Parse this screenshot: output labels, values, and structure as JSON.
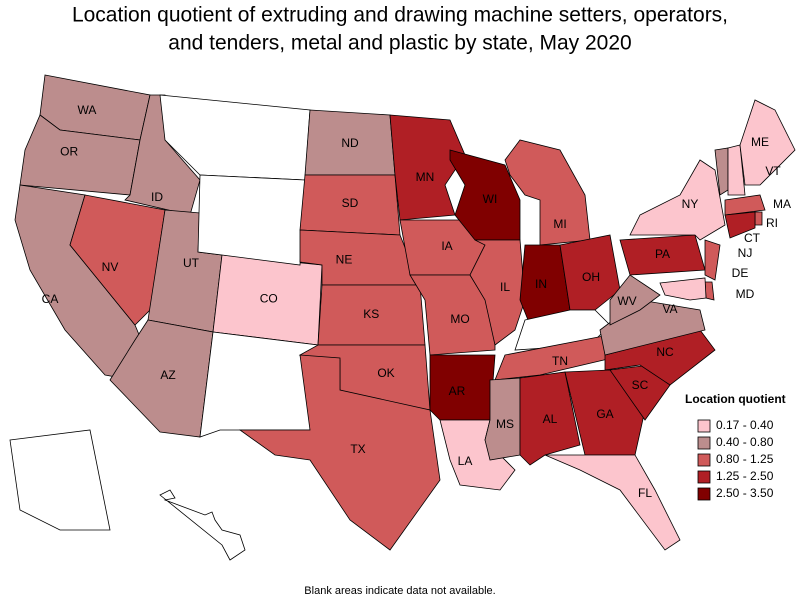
{
  "title": [
    "Location quotient of extruding and drawing machine setters, operators,",
    "and tenders, metal and plastic by state, May 2020"
  ],
  "legend": {
    "title": "Location quotient",
    "items": [
      {
        "label": "0.17 - 0.40",
        "color": "#fcc5cd"
      },
      {
        "label": "0.40 - 0.80",
        "color": "#bc8d8d"
      },
      {
        "label": "0.80 - 1.25",
        "color": "#d05a5a"
      },
      {
        "label": "1.25 - 2.50",
        "color": "#b01f25"
      },
      {
        "label": "2.50 - 3.50",
        "color": "#800000"
      }
    ]
  },
  "no_data_color": "#ffffff",
  "states": [
    {
      "label": "WA",
      "bin": 1
    },
    {
      "label": "OR",
      "bin": 1
    },
    {
      "label": "CA",
      "bin": 1
    },
    {
      "label": "ID",
      "bin": 1
    },
    {
      "label": "NV",
      "bin": 2
    },
    {
      "label": "UT",
      "bin": 1
    },
    {
      "label": "AZ",
      "bin": 1
    },
    {
      "label": "CO",
      "bin": 0
    },
    {
      "label": null,
      "bin": null
    },
    {
      "label": null,
      "bin": null
    },
    {
      "label": null,
      "bin": null
    },
    {
      "label": "ND",
      "bin": 1
    },
    {
      "label": "SD",
      "bin": 2
    },
    {
      "label": "NE",
      "bin": 2
    },
    {
      "label": "KS",
      "bin": 2
    },
    {
      "label": "OK",
      "bin": 2
    },
    {
      "label": "TX",
      "bin": 2
    },
    {
      "label": "MN",
      "bin": 3
    },
    {
      "label": "IA",
      "bin": 2
    },
    {
      "label": "MO",
      "bin": 2
    },
    {
      "label": "AR",
      "bin": 4
    },
    {
      "label": "LA",
      "bin": 0
    },
    {
      "label": "WI",
      "bin": 4
    },
    {
      "label": "IL",
      "bin": 2
    },
    {
      "label": "MI",
      "bin": 2
    },
    {
      "label": "IN",
      "bin": 4
    },
    {
      "label": "OH",
      "bin": 3
    },
    {
      "label": null,
      "bin": null
    },
    {
      "label": "TN",
      "bin": 2
    },
    {
      "label": "MS",
      "bin": 1
    },
    {
      "label": "AL",
      "bin": 3
    },
    {
      "label": "GA",
      "bin": 3
    },
    {
      "label": "FL",
      "bin": 0
    },
    {
      "label": "SC",
      "bin": 3
    },
    {
      "label": "NC",
      "bin": 3
    },
    {
      "label": "VA",
      "bin": 1
    },
    {
      "label": "WV",
      "bin": 1
    },
    {
      "label": "PA",
      "bin": 3
    },
    {
      "label": "NY",
      "bin": 0
    },
    {
      "label": "VT",
      "bin": 1
    },
    {
      "label": null,
      "bin": 0
    },
    {
      "label": "ME",
      "bin": 0
    },
    {
      "label": "MA",
      "bin": 2
    },
    {
      "label": "RI",
      "bin": 2
    },
    {
      "label": "CT",
      "bin": 3
    },
    {
      "label": "NJ",
      "bin": 2
    },
    {
      "label": "DE",
      "bin": 2
    },
    {
      "label": "MD",
      "bin": 0
    },
    {
      "label": null,
      "bin": null
    },
    {
      "label": null,
      "bin": null
    }
  ],
  "note": "Blank areas indicate data not available."
}
